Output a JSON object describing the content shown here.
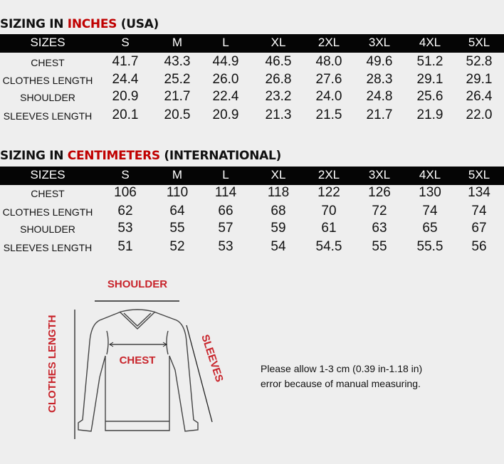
{
  "tables": [
    {
      "title_prefix": "SIZING IN ",
      "title_unit": "INCHES",
      "title_suffix": " (USA)",
      "header": [
        "SIZES",
        "S",
        "M",
        "L",
        "XL",
        "2XL",
        "3XL",
        "4XL",
        "5XL"
      ],
      "rows": [
        {
          "label": "CHEST",
          "values": [
            "41.7",
            "43.3",
            "44.9",
            "46.5",
            "48.0",
            "49.6",
            "51.2",
            "52.8"
          ]
        },
        {
          "label": "CLOTHES LENGTH",
          "values": [
            "24.4",
            "25.2",
            "26.0",
            "26.8",
            "27.6",
            "28.3",
            "29.1",
            "29.1"
          ]
        },
        {
          "label": "SHOULDER",
          "values": [
            "20.9",
            "21.7",
            "22.4",
            "23.2",
            "24.0",
            "24.8",
            "25.6",
            "26.4"
          ]
        },
        {
          "label": "SLEEVES LENGTH",
          "values": [
            "20.1",
            "20.5",
            "20.9",
            "21.3",
            "21.5",
            "21.7",
            "21.9",
            "22.0"
          ]
        }
      ]
    },
    {
      "title_prefix": "SIZING IN ",
      "title_unit": "CENTIMETERS",
      "title_suffix": " (INTERNATIONAL)",
      "header": [
        "SIZES",
        "S",
        "M",
        "L",
        "XL",
        "2XL",
        "3XL",
        "4XL",
        "5XL"
      ],
      "rows": [
        {
          "label": "CHEST",
          "values": [
            "106",
            "110",
            "114",
            "118",
            "122",
            "126",
            "130",
            "134"
          ]
        },
        {
          "label": "CLOTHES LENGTH",
          "values": [
            "62",
            "64",
            "66",
            "68",
            "70",
            "72",
            "74",
            "74"
          ]
        },
        {
          "label": "SHOULDER",
          "values": [
            "53",
            "55",
            "57",
            "59",
            "61",
            "63",
            "65",
            "67"
          ]
        },
        {
          "label": "SLEEVES LENGTH",
          "values": [
            "51",
            "52",
            "53",
            "54",
            "54.5",
            "55",
            "55.5",
            "56"
          ]
        }
      ]
    }
  ],
  "diagram": {
    "shoulder": "SHOULDER",
    "chest": "CHEST",
    "sleeves": "SLEEVES",
    "clothes_length": "CLOTHES LENGTH"
  },
  "note": {
    "line1": "Please allow 1-3 cm (0.39 in-1.18 in)",
    "line2": "error because of manual measuring."
  },
  "colors": {
    "accent": "#c00000",
    "header_bg": "#050505",
    "background": "#eeeeee"
  }
}
